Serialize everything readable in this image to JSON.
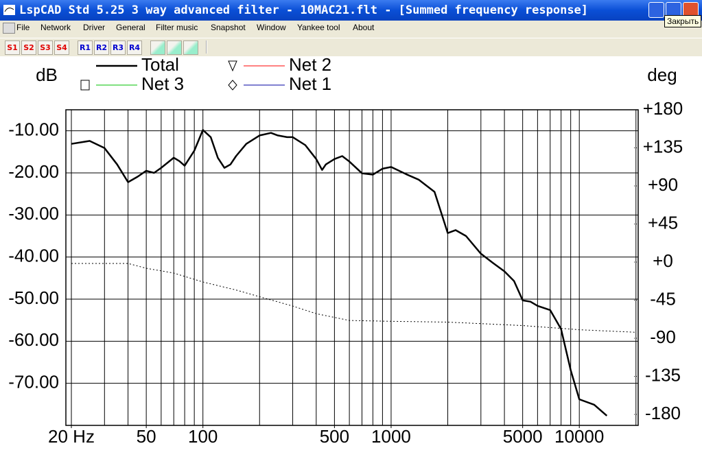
{
  "window": {
    "title": "LspCAD Std 5.25 3 way advanced filter - 10MAC21.flt - [Summed frequency response]",
    "tooltip": "Закрыть"
  },
  "menu": [
    "File",
    "Network",
    "Driver",
    "General",
    "Filter music",
    "Snapshot",
    "Window",
    "Yankee tool",
    "About"
  ],
  "toolbar": [
    "S1",
    "S2",
    "S3",
    "S4",
    "R1",
    "R2",
    "R3",
    "R4"
  ],
  "chart_data": {
    "type": "line",
    "y_label": "dB",
    "y2_label": "deg",
    "xscale": "log",
    "xlim": [
      18.7,
      20550
    ],
    "ylim": [
      -80,
      -5
    ],
    "y2lim": [
      -193,
      180
    ],
    "xticks": [
      {
        "value": 20,
        "label": "20 Hz"
      },
      50,
      100,
      500,
      1000,
      5000,
      10000
    ],
    "xgrid": [
      20,
      30,
      40,
      50,
      60,
      70,
      80,
      90,
      100,
      200,
      300,
      400,
      500,
      600,
      700,
      800,
      900,
      1000,
      2000,
      3000,
      4000,
      5000,
      6000,
      7000,
      8000,
      9000,
      10000,
      20000
    ],
    "yticks": [
      {
        "value": -10,
        "label": "-10.00"
      },
      {
        "value": -20,
        "label": "-20.00"
      },
      {
        "value": -30,
        "label": "-30.00"
      },
      {
        "value": -40,
        "label": "-40.00"
      },
      {
        "value": -50,
        "label": "-50.00"
      },
      {
        "value": -60,
        "label": "-60.00"
      },
      {
        "value": -70,
        "label": "-70.00"
      }
    ],
    "y2ticks": [
      {
        "value": 180,
        "label": "+180"
      },
      {
        "value": 135,
        "label": "+135"
      },
      {
        "value": 90,
        "label": "+90"
      },
      {
        "value": 45,
        "label": "+45"
      },
      {
        "value": 0,
        "label": "+0"
      },
      -45,
      -90,
      -135,
      -180
    ],
    "grid": true,
    "series": [
      {
        "name": "Total",
        "color": "#000000",
        "width": 2.5,
        "x": [
          20,
          25,
          30,
          35,
          40,
          45,
          50,
          55,
          60,
          70,
          75,
          80,
          90,
          100,
          110,
          120,
          130,
          140,
          150,
          170,
          200,
          230,
          250,
          280,
          300,
          350,
          400,
          430,
          450,
          500,
          550,
          600,
          700,
          800,
          900,
          1000,
          1200,
          1400,
          1700,
          2000,
          2200,
          2500,
          3000,
          3500,
          4000,
          4500,
          5000,
          5500,
          6000,
          7000,
          8000,
          9000,
          10000,
          12000,
          14000
        ],
        "values": [
          -13.1,
          -12.4,
          -14.1,
          -18,
          -22.2,
          -20.9,
          -19.5,
          -20,
          -18.8,
          -16.4,
          -17.2,
          -18.3,
          -14.7,
          -9.8,
          -11.5,
          -16.4,
          -18.8,
          -18,
          -16,
          -13.1,
          -11.1,
          -10.5,
          -11.1,
          -11.5,
          -11.5,
          -13.4,
          -16.7,
          -19.3,
          -18,
          -16.7,
          -16,
          -17.3,
          -20.1,
          -20.4,
          -19,
          -18.6,
          -20.3,
          -21.6,
          -24.5,
          -34.3,
          -33.6,
          -35,
          -39.2,
          -41.5,
          -43.4,
          -45.7,
          -50.3,
          -50.6,
          -51.6,
          -52.6,
          -57.1,
          -66.9,
          -73.8,
          -75.1,
          -77.7
        ]
      },
      {
        "color": "#000000",
        "axis": "y2",
        "dash": "2 3",
        "x": [
          20,
          40,
          50,
          70,
          100,
          150,
          200,
          300,
          400,
          600,
          1000,
          2000,
          5000,
          10000,
          20000
        ],
        "values": [
          -1.6,
          -1.6,
          -7.3,
          -13,
          -23.5,
          -33,
          -41,
          -52,
          -61,
          -69,
          -70,
          -71,
          -75,
          -80,
          -83
        ]
      },
      {
        "name": "Net 2",
        "color": "#ff0000",
        "marker": "triangle",
        "values": []
      },
      {
        "name": "Net 3",
        "color": "#00c000",
        "marker": "square",
        "values": []
      },
      {
        "name": "Net 1",
        "color": "#0000a0",
        "marker": "diamond",
        "values": []
      }
    ]
  }
}
